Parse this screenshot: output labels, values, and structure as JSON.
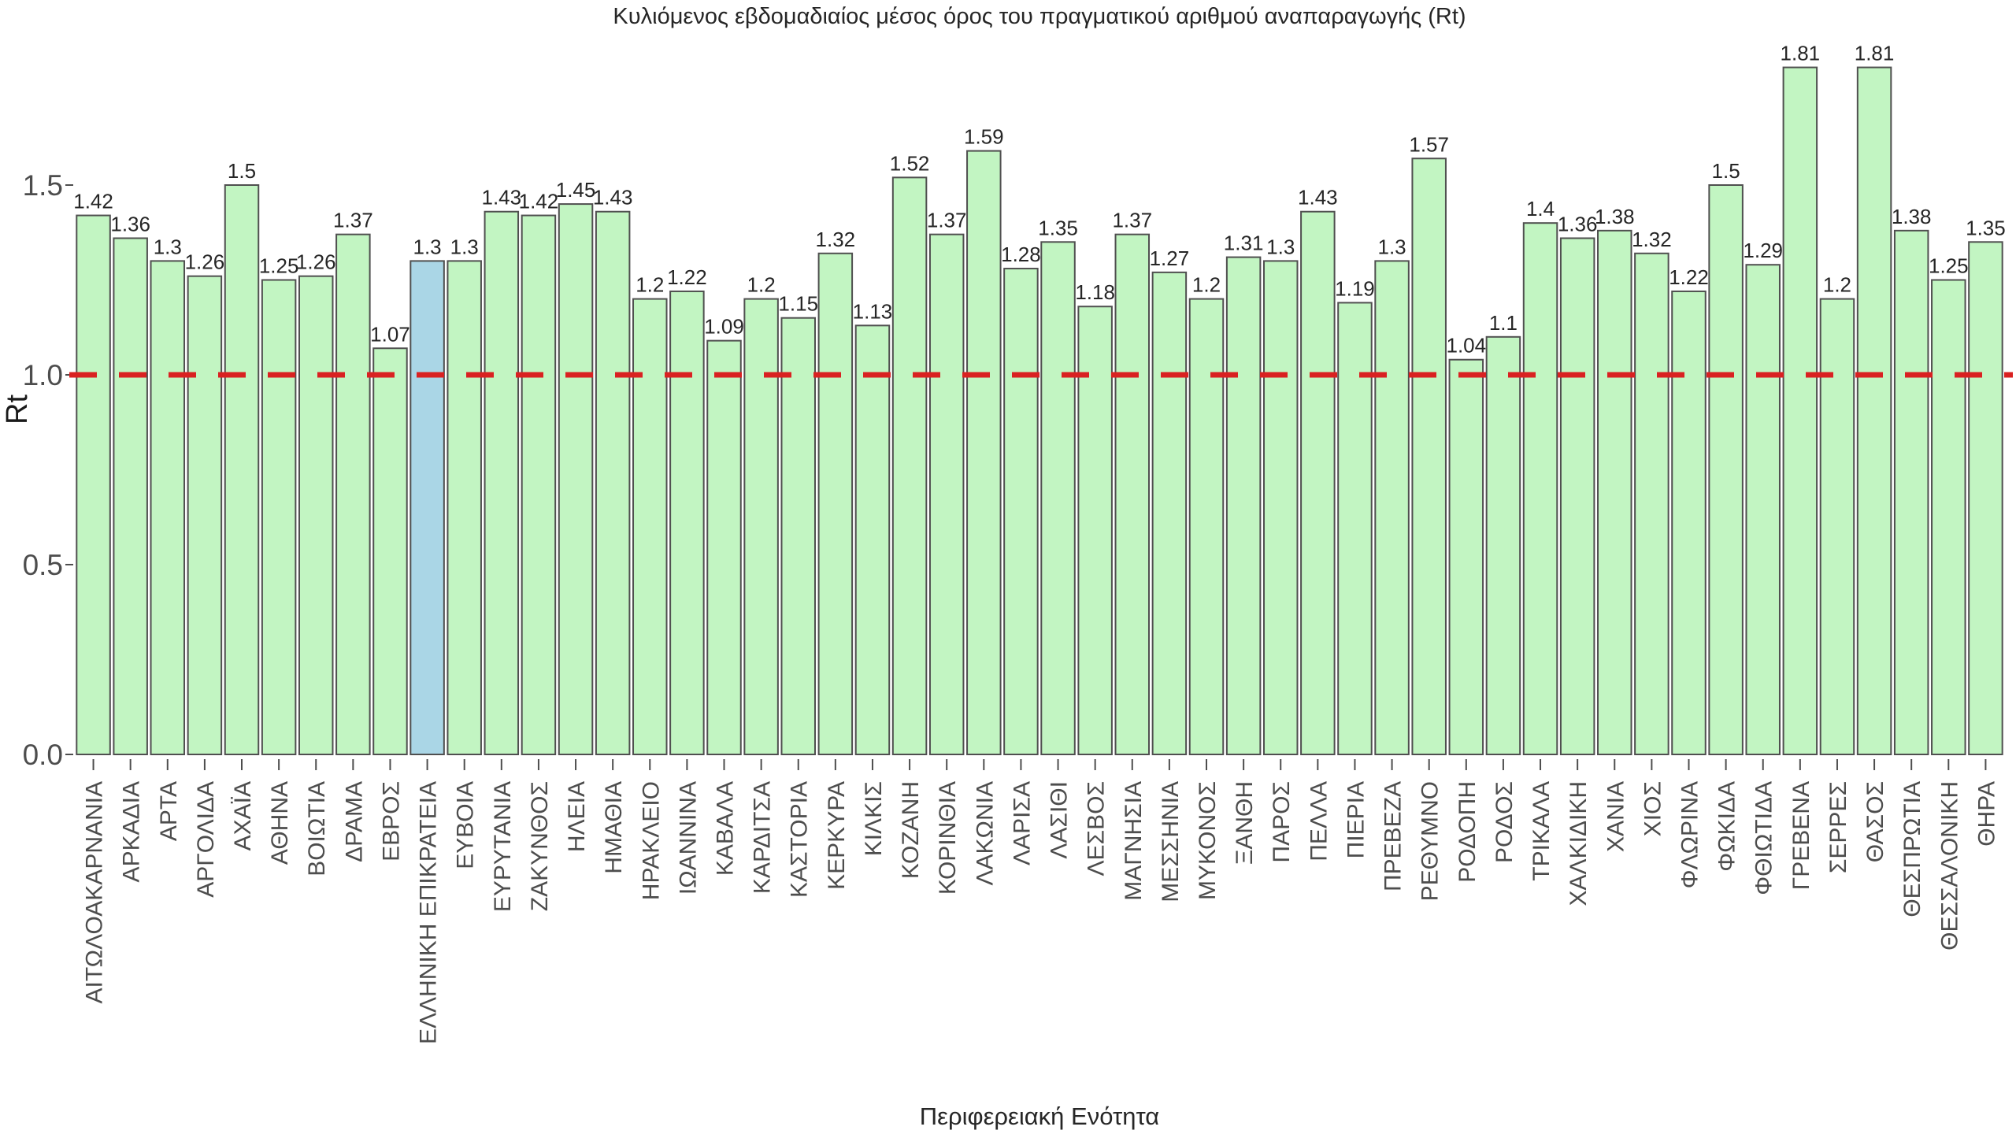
{
  "chart_data": {
    "type": "bar",
    "title": "Κυλιόμενος εβδομαδιαίος μέσος όρος του πραγματικού αριθμού αναπαραγωγής (Rt)",
    "xlabel": "Περιφερειακή Ενότητα",
    "ylabel": "Rt",
    "categories": [
      "ΑΙΤΩΛΟΑΚΑΡΝΑΝΙΑ",
      "ΑΡΚΑΔΙΑ",
      "ΑΡΤΑ",
      "ΑΡΓΟΛΙΔΑ",
      "ΑΧΑΪΑ",
      "ΑΘΗΝΑ",
      "ΒΟΙΩΤΙΑ",
      "ΔΡΑΜΑ",
      "ΕΒΡΟΣ",
      "ΕΛΛΗΝΙΚΗ ΕΠΙΚΡΑΤΕΙΑ",
      "ΕΥΒΟΙΑ",
      "ΕΥΡΥΤΑΝΙΑ",
      "ΖΑΚΥΝΘΟΣ",
      "ΗΛΕΙΑ",
      "ΗΜΑΘΙΑ",
      "ΗΡΑΚΛΕΙΟ",
      "ΙΩΑΝΝΙΝΑ",
      "ΚΑΒΑΛΑ",
      "ΚΑΡΔΙΤΣΑ",
      "ΚΑΣΤΟΡΙΑ",
      "ΚΕΡΚΥΡΑ",
      "ΚΙΛΚΙΣ",
      "ΚΟΖΑΝΗ",
      "ΚΟΡΙΝΘΙΑ",
      "ΛΑΚΩΝΙΑ",
      "ΛΑΡΙΣΑ",
      "ΛΑΣΙΘΙ",
      "ΛΕΣΒΟΣ",
      "ΜΑΓΝΗΣΙΑ",
      "ΜΕΣΣΗΝΙΑ",
      "ΜΥΚΟΝΟΣ",
      "ΞΑΝΘΗ",
      "ΠΑΡΟΣ",
      "ΠΕΛΛΑ",
      "ΠΙΕΡΙΑ",
      "ΠΡΕΒΕΖΑ",
      "ΡΕΘΥΜΝΟ",
      "ΡΟΔΟΠΗ",
      "ΡΟΔΟΣ",
      "ΤΡΙΚΑΛΑ",
      "ΧΑΛΚΙΔΙΚΗ",
      "ΧΑΝΙΑ",
      "ΧΙΟΣ",
      "ΦΛΩΡΙΝΑ",
      "ΦΩΚΙΔΑ",
      "ΦΘΙΩΤΙΔΑ",
      "ΓΡΕΒΕΝΑ",
      "ΣΕΡΡΕΣ",
      "ΘΑΣΟΣ",
      "ΘΕΣΠΡΩΤΙΑ",
      "ΘΕΣΣΑΛΟΝΙΚΗ",
      "ΘΗΡΑ"
    ],
    "values": [
      1.42,
      1.36,
      1.3,
      1.26,
      1.5,
      1.25,
      1.26,
      1.37,
      1.07,
      1.3,
      1.3,
      1.43,
      1.42,
      1.45,
      1.43,
      1.2,
      1.22,
      1.09,
      1.2,
      1.15,
      1.32,
      1.13,
      1.52,
      1.37,
      1.59,
      1.28,
      1.35,
      1.18,
      1.37,
      1.27,
      1.2,
      1.31,
      1.3,
      1.43,
      1.19,
      1.3,
      1.57,
      1.04,
      1.1,
      1.4,
      1.36,
      1.38,
      1.32,
      1.22,
      1.5,
      1.29,
      1.81,
      1.2,
      1.81,
      1.38,
      1.25,
      1.35
    ],
    "highlight_category": "ΕΛΛΗΝΙΚΗ ΕΠΙΚΡΑΤΕΙΑ",
    "yticks": [
      0.0,
      0.5,
      1.0,
      1.5
    ],
    "ylim": [
      0,
      1.9
    ],
    "grid": false,
    "legend_position": "none",
    "reference_line": {
      "y": 1.0,
      "style": "dashed"
    },
    "colors": {
      "bar_fill": "#c2f5c2",
      "highlight_fill": "#aad6e6",
      "bar_border": "#4f4f4f",
      "reference_line": "#d92121",
      "tick_label": "#4d4d4d",
      "value_label": "#262626"
    }
  }
}
